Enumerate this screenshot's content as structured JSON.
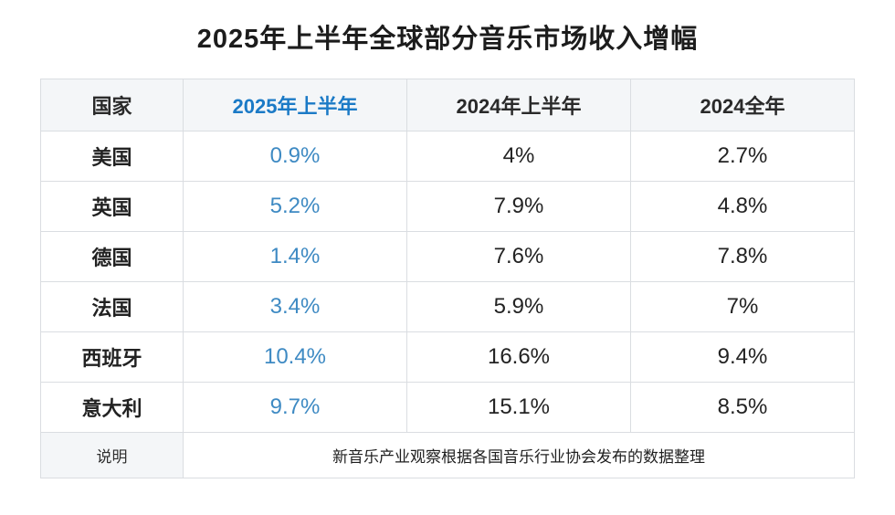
{
  "title": "2025年上半年全球部分音乐市场收入增幅",
  "colors": {
    "highlight_header_blue": "#1b7ac6",
    "highlight_value_blue": "#3e8ac3",
    "text_dark": "#222222",
    "header_bg": "#f4f6f8",
    "grid_line": "#dadde1",
    "header_divider": "#84878b"
  },
  "chart_data": {
    "type": "table",
    "title": "2025年上半年全球部分音乐市场收入增幅",
    "columns": [
      "国家",
      "2025年上半年",
      "2024年上半年",
      "2024全年"
    ],
    "highlight_column": "2025年上半年",
    "rows": [
      [
        "美国",
        "0.9%",
        "4%",
        "2.7%"
      ],
      [
        "英国",
        "5.2%",
        "7.9%",
        "4.8%"
      ],
      [
        "德国",
        "1.4%",
        "7.6%",
        "7.8%"
      ],
      [
        "法国",
        "3.4%",
        "5.9%",
        "7%"
      ],
      [
        "西班牙",
        "10.4%",
        "16.6%",
        "9.4%"
      ],
      [
        "意大利",
        "9.7%",
        "15.1%",
        "8.5%"
      ]
    ],
    "note_label": "说明",
    "note_text": "新音乐产业观察根据各国音乐行业协会发布的数据整理"
  }
}
